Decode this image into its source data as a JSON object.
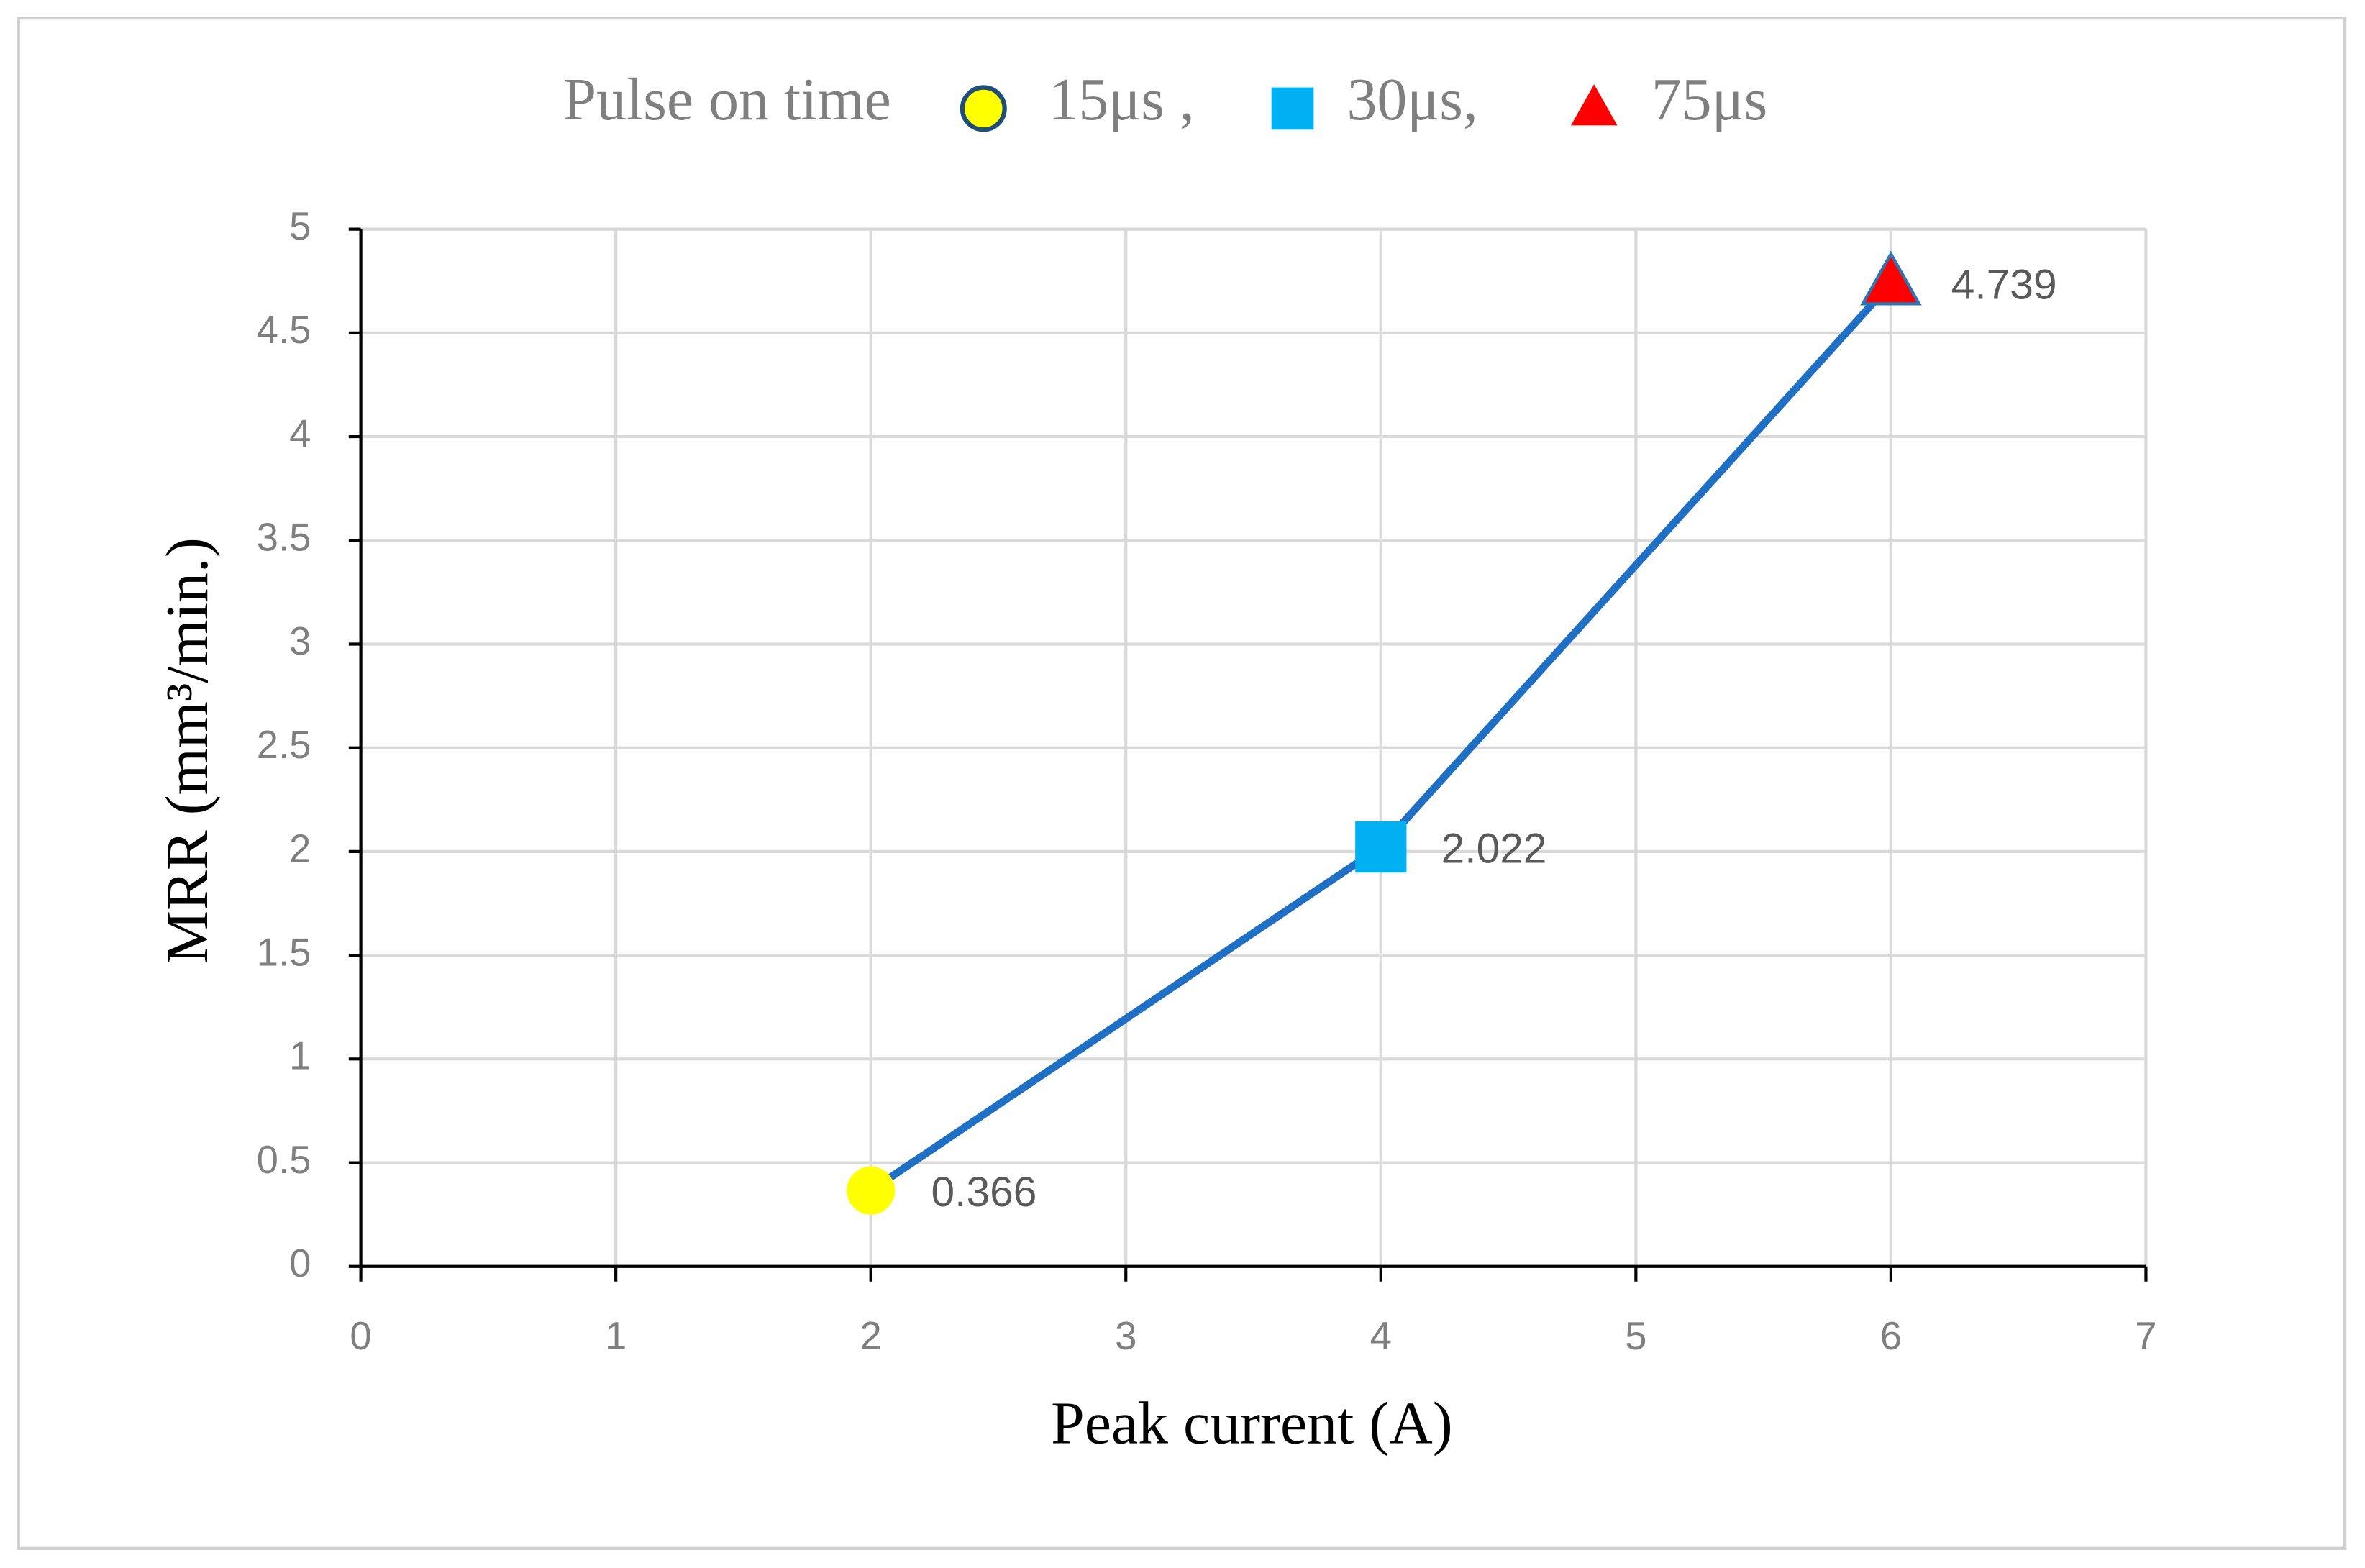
{
  "chart_data": {
    "type": "line",
    "legend_title": "Pulse on time",
    "xlabel": "Peak current (A)",
    "ylabel": "MRR (mm³/min.)",
    "x": [
      2,
      4,
      6
    ],
    "series": [
      {
        "color": "#1f6fc5",
        "values": [
          0.366,
          2.022,
          4.739
        ],
        "point_names": [
          "15μs ,",
          "30μs,",
          "75μs"
        ],
        "markers": [
          "circle",
          "square",
          "triangle"
        ],
        "marker_colors": [
          "#ffff00",
          "#00b0f0",
          "#ff0000"
        ]
      }
    ],
    "xlim": [
      0,
      7
    ],
    "xticks": [
      0,
      1,
      2,
      3,
      4,
      5,
      6,
      7
    ],
    "ylim": [
      0,
      5
    ],
    "yticks": [
      0,
      {
        "value": 0.5,
        "label": "0.5"
      },
      1,
      {
        "value": 1.5,
        "label": "1.5"
      },
      2,
      {
        "value": 2.5,
        "label": "2.5"
      },
      3,
      {
        "value": 3.5,
        "label": "3.5"
      },
      4,
      {
        "value": 4.5,
        "label": "4.5"
      },
      5
    ],
    "grid": true
  }
}
